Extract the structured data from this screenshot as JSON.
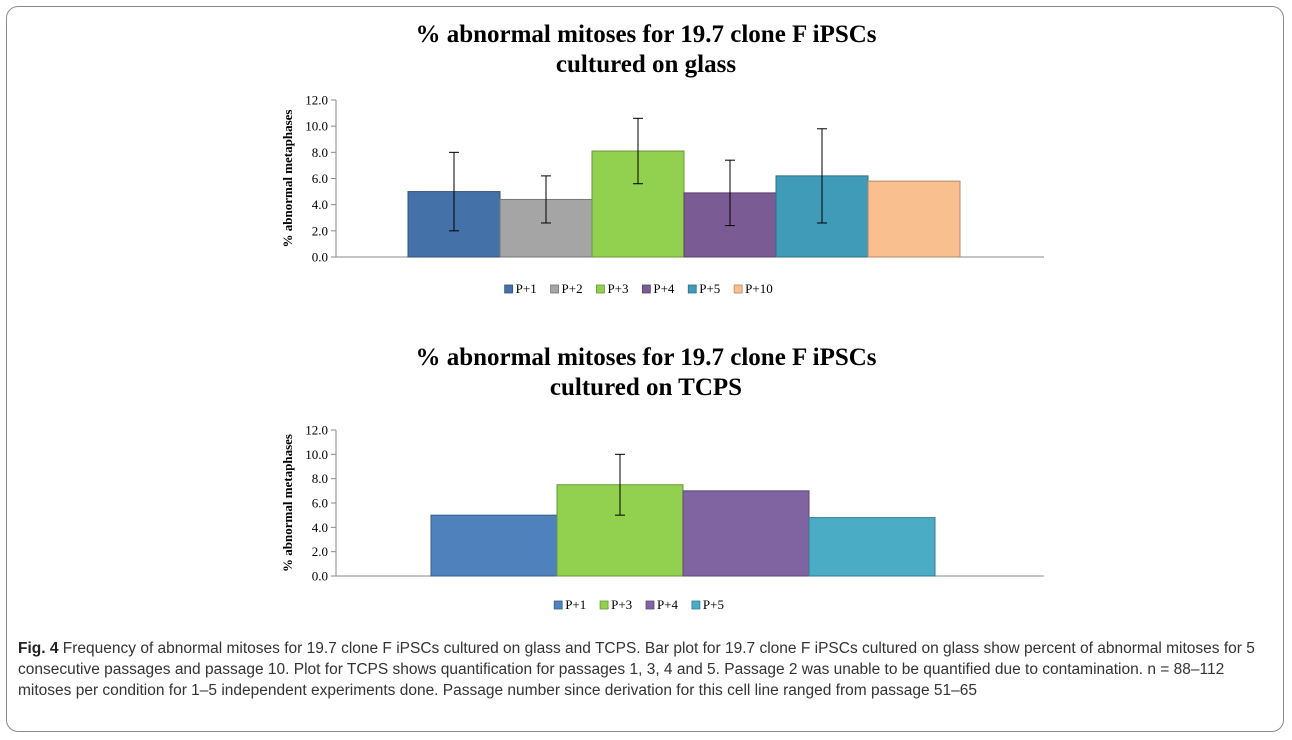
{
  "charts": [
    {
      "title": "% abnormal mitoses for 19.7 clone F iPSCs\ncultured on glass",
      "ylabel": "% abnormal metaphases",
      "legend_position": "bottom"
    },
    {
      "title": "% abnormal mitoses for 19.7 clone F iPSCs\ncultured on TCPS",
      "ylabel": "% abnormal metaphases",
      "legend_position": "bottom"
    }
  ],
  "chart_data": [
    {
      "type": "bar",
      "title": "% abnormal mitoses for 19.7 clone F iPSCs cultured on glass",
      "ylabel": "% abnormal metaphases",
      "xlabel": "",
      "ylim": [
        0,
        12
      ],
      "yticks": [
        "0.0",
        "2.0",
        "4.0",
        "6.0",
        "8.0",
        "10.0",
        "12.0"
      ],
      "grid": false,
      "legend": "bottom",
      "series": [
        {
          "name": "P+1",
          "value": 5.0,
          "error": 3.0,
          "color": "#4472a8"
        },
        {
          "name": "P+2",
          "value": 4.4,
          "error": 1.8,
          "color": "#a5a5a5"
        },
        {
          "name": "P+3",
          "value": 8.1,
          "error": 2.5,
          "color": "#92d050"
        },
        {
          "name": "P+4",
          "value": 4.9,
          "error": 2.5,
          "color": "#7b5b93"
        },
        {
          "name": "P+5",
          "value": 6.2,
          "error": 3.6,
          "color": "#3f9bb8"
        },
        {
          "name": "P+10",
          "value": 5.8,
          "error": null,
          "color": "#f9bf8f"
        }
      ]
    },
    {
      "type": "bar",
      "title": "% abnormal mitoses for 19.7 clone F iPSCs cultured on TCPS",
      "ylabel": "% abnormal metaphases",
      "xlabel": "",
      "ylim": [
        0,
        12
      ],
      "yticks": [
        "0.0",
        "2.0",
        "4.0",
        "6.0",
        "8.0",
        "10.0",
        "12.0"
      ],
      "grid": false,
      "legend": "bottom",
      "series": [
        {
          "name": "P+1",
          "value": 5.0,
          "error": null,
          "color": "#4f81bd"
        },
        {
          "name": "P+3",
          "value": 7.5,
          "error": 2.5,
          "color": "#92d050"
        },
        {
          "name": "P+4",
          "value": 7.0,
          "error": null,
          "color": "#8064a2"
        },
        {
          "name": "P+5",
          "value": 4.8,
          "error": null,
          "color": "#4bacc6"
        }
      ]
    }
  ],
  "caption": {
    "label": "Fig. 4",
    "text": " Frequency of abnormal mitoses for 19.7 clone F iPSCs cultured on glass and TCPS. Bar plot for 19.7 clone F iPSCs cultured on glass show percent of abnormal mitoses for 5 consecutive passages and passage 10. Plot for TCPS shows quantification for passages 1, 3, 4 and 5. Passage 2 was unable to be quantified due to contamination. n = 88–112 mitoses per condition for 1–5 independent experiments done. Passage number since derivation for this cell line ranged from passage 51–65"
  }
}
